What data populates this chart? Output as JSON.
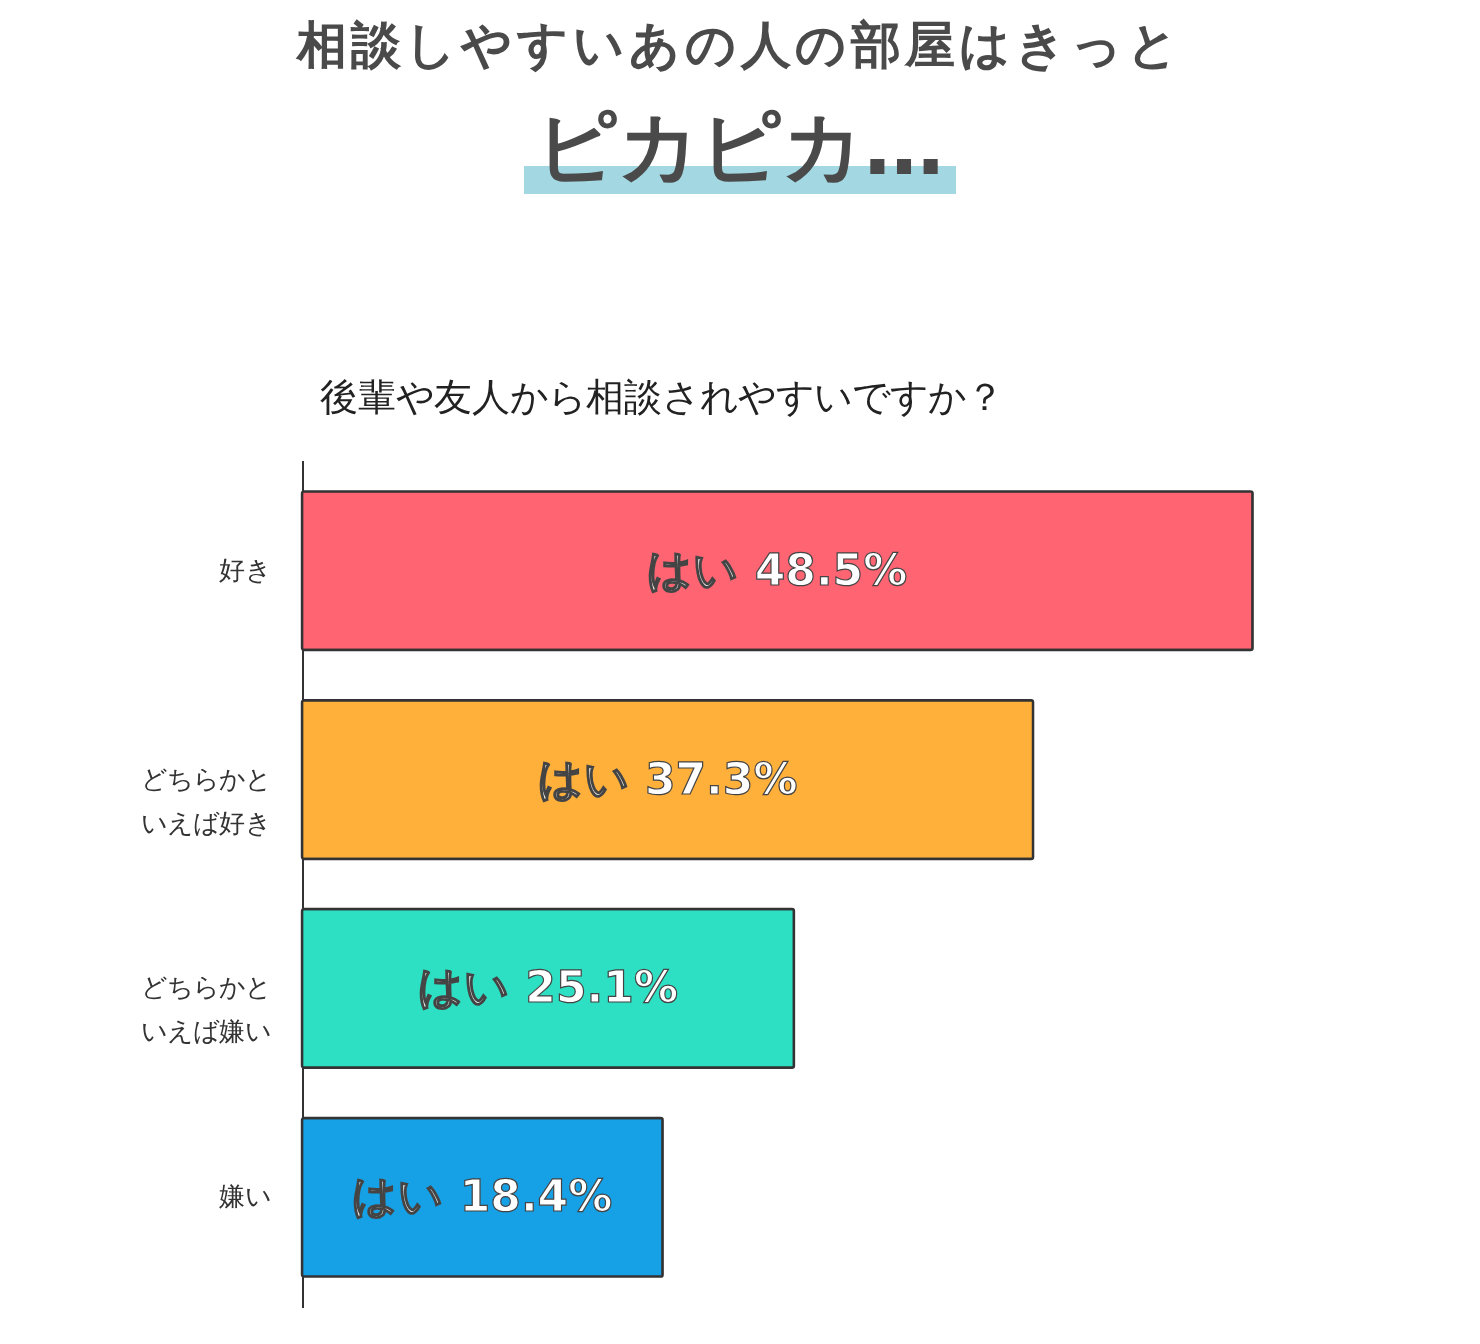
{
  "chart_data": {
    "type": "bar",
    "orientation": "horizontal",
    "title": "相談しやすいあの人の部屋はきっと",
    "subtitle": "ピカピカ…",
    "annotations": [
      "後輩や友人から相談されやすいですか？"
    ],
    "categories": [
      "好き",
      "どちらかといえば好き",
      "どちらかといえば嫌い",
      "嫌い"
    ],
    "values": [
      48.5,
      37.3,
      25.1,
      18.4
    ],
    "colors": [
      "#ff6473",
      "#ffb03b",
      "#2de0c4",
      "#16a0e6"
    ],
    "value_labels": [
      "はい 48.5%",
      "はい 37.3%",
      "はい 25.1%",
      "はい 18.4%"
    ],
    "tick_labels": "y"
  }
}
